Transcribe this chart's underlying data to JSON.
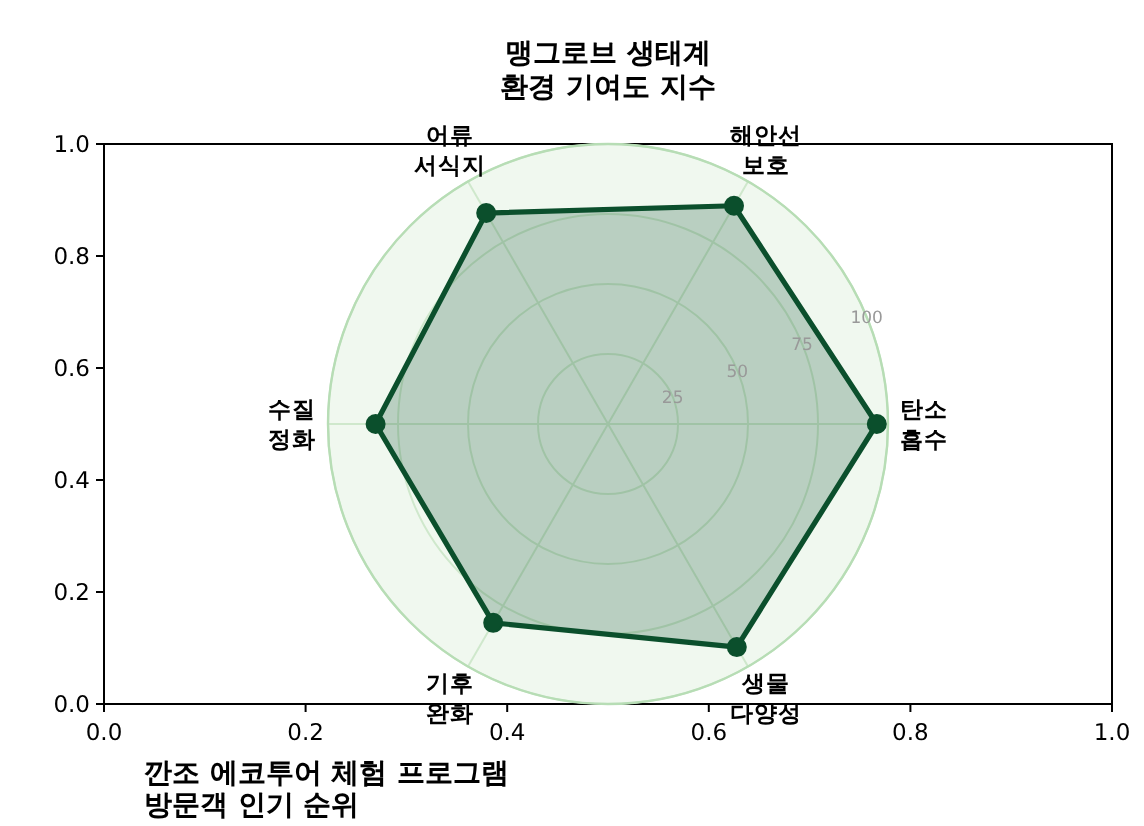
{
  "chart_data": [
    {
      "type": "scatter",
      "xlim": [
        0,
        1
      ],
      "ylim": [
        0,
        1
      ],
      "xticks": [
        {
          "value": 0,
          "label": "0.0"
        },
        0.2,
        0.4,
        0.6,
        0.8,
        {
          "value": 1,
          "label": "1.0"
        }
      ],
      "yticks": [
        {
          "value": 0,
          "label": "0.0"
        },
        0.2,
        0.4,
        0.6,
        0.8,
        {
          "value": 1,
          "label": "1.0"
        }
      ]
    },
    {
      "type": "radar",
      "title": "맹그로브 생태계\n환경 기여도 지수",
      "categories": [
        "해안선\n보호",
        "탄소\n흡수",
        "생물\n다양성",
        "기후\n완화",
        "수질\n정화",
        "어류\n서식지"
      ],
      "series": [
        {
          "color": "#0b4f2c",
          "values": [
            90,
            96,
            92,
            82,
            83,
            87
          ]
        }
      ],
      "ylim": [
        0,
        100
      ],
      "yticks": [
        25,
        50,
        75,
        100
      ],
      "marker": "circle",
      "grid": true
    },
    {
      "type": "other",
      "title": "깐조 에코투어 체험 프로그램\n방문객 인기 순위"
    }
  ]
}
